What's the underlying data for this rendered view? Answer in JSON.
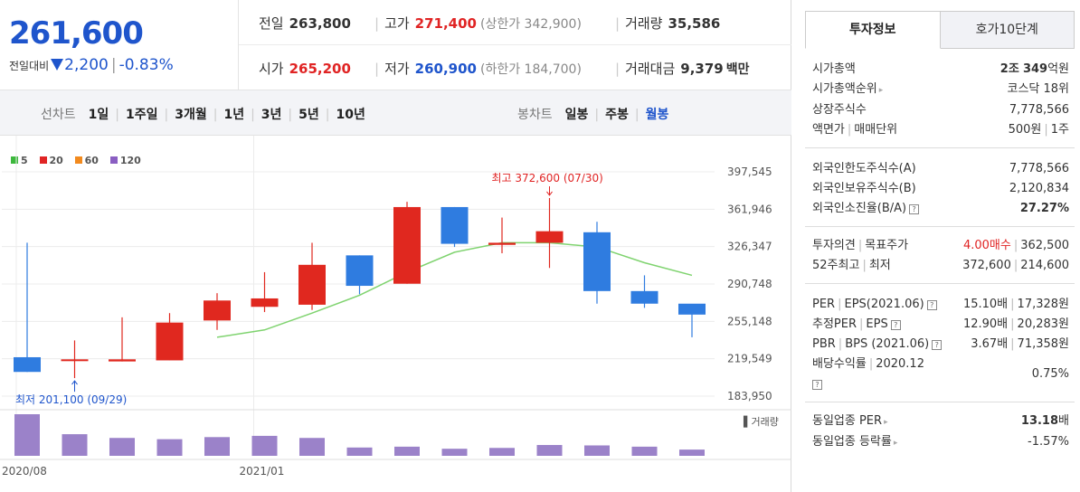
{
  "header": {
    "price": "261,600",
    "change_label": "전일대비",
    "change_value": "2,200",
    "change_pct": "-0.83%",
    "row1": [
      {
        "label": "전일",
        "value": "263,800",
        "color": "normal",
        "sub": ""
      },
      {
        "label": "고가",
        "value": "271,400",
        "color": "red",
        "sub": "(상한가 342,900)"
      },
      {
        "label": "거래량",
        "value": "35,586",
        "color": "normal",
        "sub": ""
      }
    ],
    "row2": [
      {
        "label": "시가",
        "value": "265,200",
        "color": "red",
        "sub": ""
      },
      {
        "label": "저가",
        "value": "260,900",
        "color": "blue",
        "sub": "(하한가 184,700)"
      },
      {
        "label": "거래대금",
        "value": "9,379",
        "color": "normal",
        "sub": "백만"
      }
    ]
  },
  "period_bar": {
    "line_title": "선차트",
    "line_items": [
      "1일",
      "1주일",
      "3개월",
      "1년",
      "3년",
      "5년",
      "10년"
    ],
    "candle_title": "봉차트",
    "candle_items": [
      "일봉",
      "주봉",
      "월봉"
    ],
    "active_candle": "월봉"
  },
  "legend": [
    {
      "label": "5",
      "color": "#3db83d"
    },
    {
      "label": "20",
      "color": "#e02424"
    },
    {
      "label": "60",
      "color": "#f28a1e"
    },
    {
      "label": "120",
      "color": "#8a5ec2"
    }
  ],
  "chart_data": {
    "type": "candlestick",
    "title": "",
    "up_color": "#e0281f",
    "down_color": "#2f7ce0",
    "ma_color": "#7fd36f",
    "volume_color": "#9b82c9",
    "y_ticks": [
      "397,545",
      "361,946",
      "326,347",
      "290,748",
      "255,148",
      "219,549",
      "183,950"
    ],
    "ylim": [
      183950,
      397545
    ],
    "x_labels": [
      {
        "label": "2020/08",
        "index": 0
      },
      {
        "label": "2021/01",
        "index": 5
      }
    ],
    "volume_label": "거래량",
    "high_annotation": "최고 372,600 (07/30)",
    "low_annotation": "최저 201,100 (09/29)",
    "candles": [
      {
        "o": 221000,
        "c": 207000,
        "h": 330000,
        "l": 207000
      },
      {
        "o": 219000,
        "c": 219000,
        "h": 237000,
        "l": 201100
      },
      {
        "o": 217000,
        "c": 219000,
        "h": 259000,
        "l": 217000
      },
      {
        "o": 218000,
        "c": 254000,
        "h": 263000,
        "l": 218000
      },
      {
        "o": 256000,
        "c": 275000,
        "h": 282000,
        "l": 247000
      },
      {
        "o": 269000,
        "c": 277000,
        "h": 302000,
        "l": 264000
      },
      {
        "o": 271000,
        "c": 309000,
        "h": 330000,
        "l": 266000
      },
      {
        "o": 318000,
        "c": 289000,
        "h": 318000,
        "l": 281000
      },
      {
        "o": 291000,
        "c": 364000,
        "h": 369000,
        "l": 291000
      },
      {
        "o": 364000,
        "c": 329000,
        "h": 364000,
        "l": 326000
      },
      {
        "o": 328000,
        "c": 330000,
        "h": 354000,
        "l": 320000
      },
      {
        "o": 330000,
        "c": 341000,
        "h": 372600,
        "l": 306000
      },
      {
        "o": 340000,
        "c": 284000,
        "h": 350000,
        "l": 272000
      },
      {
        "o": 284000,
        "c": 272000,
        "h": 299000,
        "l": 268000
      },
      {
        "o": 272000,
        "c": 261600,
        "h": 271400,
        "l": 240000
      }
    ],
    "ma5": [
      null,
      null,
      null,
      null,
      240000,
      247000,
      263000,
      280000,
      302000,
      321000,
      330000,
      330000,
      326000,
      311000,
      299000
    ],
    "volume": [
      100,
      52,
      43,
      40,
      45,
      48,
      43,
      20,
      22,
      17,
      19,
      26,
      25,
      22,
      15
    ]
  },
  "right_panel": {
    "tabs": [
      "투자정보",
      "호가10단계"
    ],
    "market_cap": {
      "label": "시가총액",
      "value_a": "2조",
      "value_b": "349",
      "unit": "억원"
    },
    "market_cap_rank": {
      "label": "시가총액순위",
      "value": "코스닥 18위"
    },
    "shares": {
      "label": "상장주식수",
      "value": "7,778,566"
    },
    "par": {
      "label_a": "액면가",
      "label_b": "매매단위",
      "value_a": "500원",
      "value_b": "1주"
    },
    "foreign_limit": {
      "label": "외국인한도주식수(A)",
      "value": "7,778,566"
    },
    "foreign_holding": {
      "label": "외국인보유주식수(B)",
      "value": "2,120,834"
    },
    "foreign_ratio": {
      "label": "외국인소진율(B/A)",
      "value": "27.27%"
    },
    "opinion": {
      "label_a": "투자의견",
      "label_b": "목표주가",
      "value_a": "4.00매수",
      "value_b": "362,500"
    },
    "w52": {
      "label_a": "52주최고",
      "label_b": "최저",
      "value_a": "372,600",
      "value_b": "214,600"
    },
    "per": {
      "label_a": "PER",
      "label_b": "EPS(2021.06)",
      "value_a": "15.10배",
      "value_b": "17,328원"
    },
    "est_per": {
      "label_a": "추정PER",
      "label_b": "EPS",
      "value_a": "12.90배",
      "value_b": "20,283원"
    },
    "pbr": {
      "label_a": "PBR",
      "label_b": "BPS (2021.06)",
      "value_a": "3.67배",
      "value_b": "71,358원"
    },
    "dividend": {
      "label_a": "배당수익률",
      "label_b": "2020.12",
      "value": "0.75%"
    },
    "industry_per": {
      "label": "동일업종 PER",
      "value": "13.18",
      "unit": "배"
    },
    "industry_chg": {
      "label": "동일업종 등락률",
      "value": "-1.57%"
    }
  }
}
